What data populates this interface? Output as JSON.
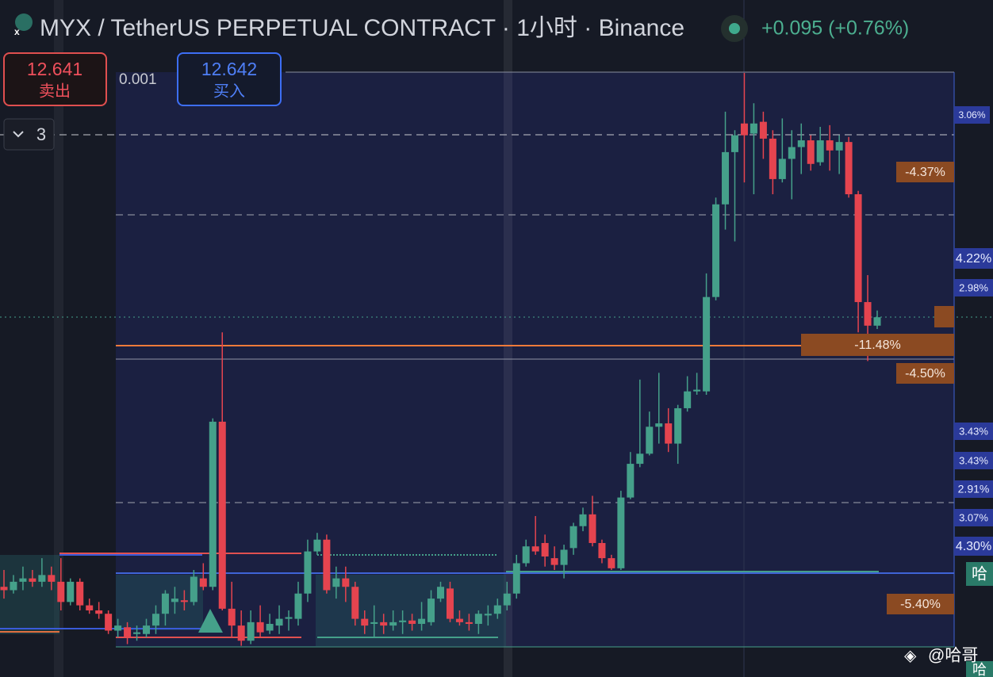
{
  "header": {
    "title": "MYX / TetherUS PERPETUAL CONTRACT · 1小时 · Binance",
    "change": "+0.095 (+0.76%)"
  },
  "order": {
    "sell_price": 12.641,
    "sell_label": "卖出",
    "buy_price": 12.642,
    "buy_label": "买入",
    "spread": 0.001
  },
  "collapse_count": 3,
  "price_labels": [
    {
      "text": "3.06%",
      "style": "blue"
    },
    {
      "text": "-4.37%",
      "style": "brown"
    },
    {
      "text": "4.22%",
      "style": "blue"
    },
    {
      "text": "2.98%",
      "style": "blue"
    },
    {
      "text": "-11.48%",
      "style": "brown"
    },
    {
      "text": "-4.50%",
      "style": "brown"
    },
    {
      "text": "3.43%",
      "style": "blue"
    },
    {
      "text": "3.43%",
      "style": "blue"
    },
    {
      "text": "2.91%",
      "style": "blue"
    },
    {
      "text": "3.07%",
      "style": "blue"
    },
    {
      "text": "4.30%",
      "style": "blue"
    },
    {
      "text": "-5.40%",
      "style": "brown"
    },
    {
      "text": "哈",
      "style": "teal"
    },
    {
      "text": "哈",
      "style": "teal"
    }
  ],
  "watermark": "@哈哥",
  "chart_data": {
    "type": "candlestick",
    "ylim": [
      10.5,
      14.25
    ],
    "up_color": "#45a08a",
    "down_color": "#e5444f",
    "open": [
      11.04,
      11.02,
      11.07,
      11.09,
      11.07,
      11.11,
      11.07,
      10.95,
      11.07,
      10.93,
      10.9,
      10.88,
      10.78,
      10.8,
      10.76,
      10.76,
      10.81,
      10.88,
      10.95,
      10.96,
      10.95,
      11.09,
      11.04,
      12.02,
      10.91,
      10.81,
      10.72,
      10.83,
      10.78,
      10.81,
      10.85,
      10.85,
      11.0,
      11.25,
      11.32,
      11.04,
      11.09,
      11.04,
      10.85,
      10.82,
      10.83,
      10.81,
      10.83,
      10.84,
      10.82,
      10.83,
      10.97,
      11.03,
      10.85,
      10.83,
      10.82,
      10.87,
      10.88,
      10.93,
      11.0,
      11.18,
      11.28,
      11.3,
      11.21,
      11.17,
      11.27,
      11.4,
      11.47,
      11.3,
      11.21,
      11.15,
      11.57,
      11.77,
      11.83,
      11.99,
      12.01,
      11.89,
      12.1,
      12.2,
      12.2,
      12.76,
      13.31,
      13.62,
      13.79,
      13.73,
      13.8,
      13.7,
      13.46,
      13.58,
      13.65,
      13.69,
      13.56,
      13.69,
      13.63,
      13.68,
      13.37,
      12.73,
      12.59
    ],
    "high": [
      11.14,
      11.11,
      11.16,
      11.14,
      11.21,
      11.16,
      11.21,
      11.09,
      11.09,
      10.97,
      10.95,
      10.9,
      10.85,
      10.83,
      10.81,
      10.85,
      10.93,
      11.02,
      11.04,
      11.02,
      11.14,
      11.18,
      12.04,
      12.55,
      11.07,
      10.9,
      10.9,
      10.93,
      10.88,
      10.93,
      10.9,
      11.07,
      11.32,
      11.36,
      11.35,
      11.16,
      11.16,
      11.07,
      10.9,
      10.93,
      10.88,
      10.9,
      10.9,
      10.88,
      10.95,
      11.02,
      11.07,
      11.07,
      10.9,
      10.88,
      10.9,
      10.93,
      10.97,
      11.07,
      11.23,
      11.32,
      11.46,
      11.35,
      11.28,
      11.29,
      11.42,
      11.51,
      11.58,
      11.32,
      11.23,
      11.61,
      11.84,
      12.27,
      12.08,
      12.31,
      12.1,
      12.12,
      12.29,
      12.31,
      12.9,
      13.35,
      13.86,
      13.75,
      14.09,
      13.91,
      13.86,
      13.75,
      13.82,
      13.75,
      13.79,
      13.72,
      13.77,
      13.78,
      13.72,
      13.71,
      13.39,
      12.89,
      12.68
    ],
    "low": [
      10.97,
      11.0,
      11.02,
      11.04,
      11.04,
      11.02,
      10.9,
      10.93,
      10.9,
      10.88,
      10.85,
      10.76,
      10.74,
      10.7,
      10.72,
      10.74,
      10.76,
      10.81,
      10.88,
      10.9,
      10.93,
      11.02,
      11.02,
      10.9,
      10.74,
      10.69,
      10.7,
      10.74,
      10.76,
      10.76,
      10.78,
      10.81,
      10.95,
      11.23,
      11.0,
      10.97,
      10.95,
      10.81,
      10.76,
      10.74,
      10.76,
      10.78,
      10.76,
      10.78,
      10.78,
      10.81,
      10.95,
      10.83,
      10.81,
      10.78,
      10.76,
      10.81,
      10.85,
      10.9,
      10.97,
      11.16,
      11.23,
      11.16,
      11.14,
      11.09,
      11.23,
      11.37,
      11.28,
      11.18,
      11.14,
      11.14,
      11.56,
      11.75,
      11.82,
      11.89,
      11.84,
      11.77,
      12.08,
      12.18,
      12.18,
      12.74,
      13.16,
      13.09,
      13.44,
      13.37,
      13.58,
      13.37,
      13.44,
      13.34,
      13.49,
      13.51,
      13.54,
      13.51,
      13.49,
      13.35,
      12.55,
      12.38,
      12.57
    ],
    "close": [
      11.02,
      11.07,
      11.09,
      11.07,
      11.11,
      11.07,
      10.95,
      11.07,
      10.93,
      10.9,
      10.88,
      10.78,
      10.81,
      10.74,
      10.77,
      10.81,
      10.88,
      11.0,
      10.97,
      10.95,
      11.1,
      11.04,
      12.02,
      10.91,
      10.81,
      10.72,
      10.83,
      10.77,
      10.82,
      10.85,
      10.86,
      11.0,
      11.25,
      11.32,
      11.02,
      11.09,
      11.04,
      10.85,
      10.81,
      10.83,
      10.81,
      10.83,
      10.84,
      10.82,
      10.85,
      10.97,
      11.04,
      10.85,
      10.83,
      10.82,
      10.88,
      10.88,
      10.93,
      11.0,
      11.18,
      11.28,
      11.25,
      11.22,
      11.17,
      11.26,
      11.4,
      11.47,
      11.3,
      11.21,
      11.15,
      11.57,
      11.77,
      11.83,
      11.99,
      12.01,
      11.89,
      12.1,
      12.2,
      12.21,
      12.76,
      13.31,
      13.62,
      13.72,
      13.72,
      13.79,
      13.7,
      13.46,
      13.58,
      13.65,
      13.69,
      13.55,
      13.69,
      13.63,
      13.68,
      13.37,
      12.73,
      12.59,
      12.64
    ]
  }
}
